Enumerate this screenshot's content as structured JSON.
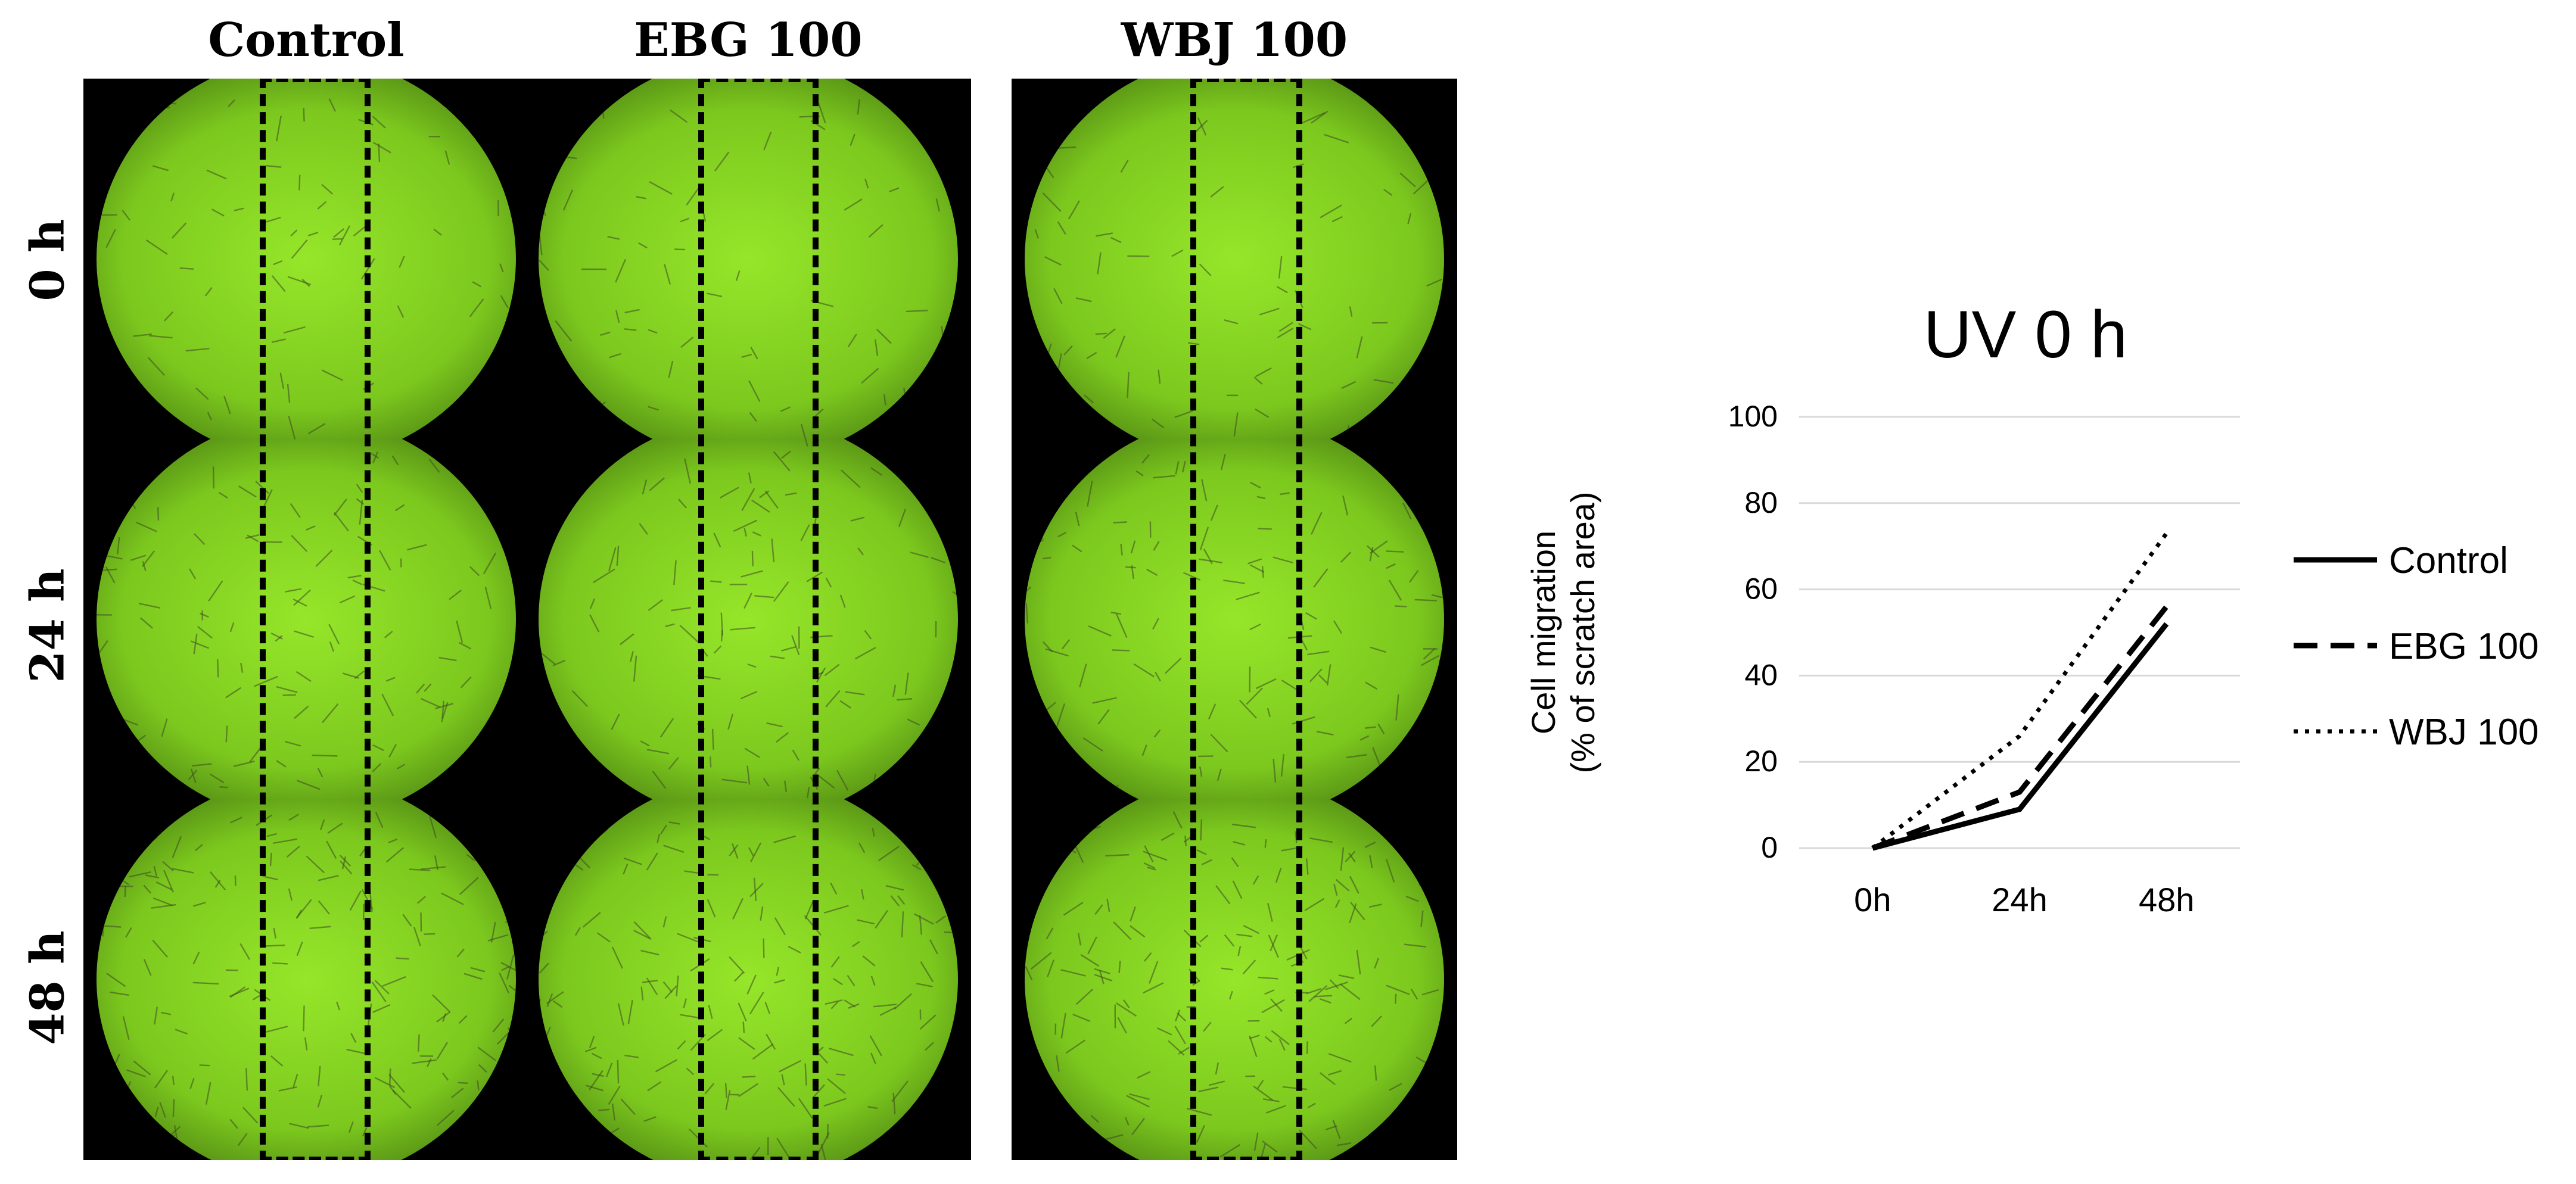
{
  "figure": {
    "panel_titles": [
      "Control",
      "EBG 100",
      "WBJ 100"
    ],
    "row_labels": [
      "0 h",
      "24 h",
      "48 h"
    ]
  },
  "chart_data": {
    "type": "line",
    "title": "UV 0 h",
    "xlabel": "",
    "ylabel_lines": [
      "Cell migration",
      "(% of scratch area)"
    ],
    "categories": [
      "0h",
      "24h",
      "48h"
    ],
    "ylim": [
      0,
      100
    ],
    "yticks": [
      0,
      20,
      40,
      60,
      80,
      100
    ],
    "grid": true,
    "legend_position": "right",
    "series": [
      {
        "name": "Control",
        "values": [
          0,
          9,
          52
        ],
        "style": "solid",
        "color": "#000000"
      },
      {
        "name": "EBG 100",
        "values": [
          0,
          13,
          56
        ],
        "style": "dashed",
        "color": "#000000"
      },
      {
        "name": "WBJ 100",
        "values": [
          0,
          26,
          73
        ],
        "style": "dotted",
        "color": "#000000"
      }
    ]
  }
}
